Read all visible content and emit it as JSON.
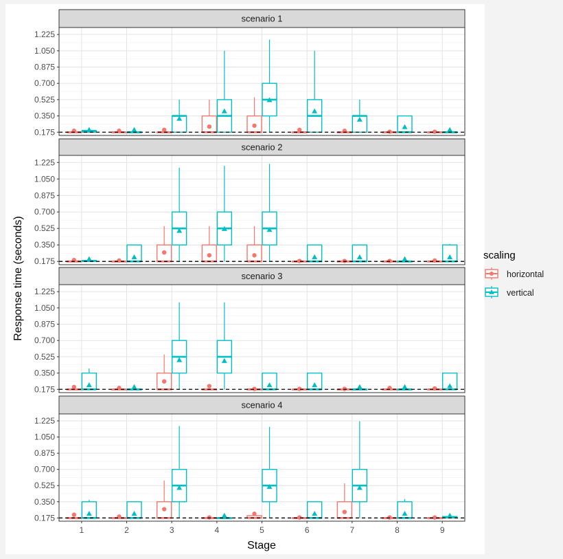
{
  "chart_data": {
    "type": "box",
    "xlabel": "Stage",
    "ylabel": "Response time (seconds)",
    "x_categories": [
      "1",
      "2",
      "3",
      "4",
      "5",
      "6",
      "7",
      "8",
      "9"
    ],
    "y_ticks": [
      0.175,
      0.35,
      0.525,
      0.7,
      0.875,
      1.05,
      1.225
    ],
    "y_tick_labels": [
      "0.175",
      "0.350",
      "0.525",
      "0.700",
      "0.875",
      "1.050",
      "1.225"
    ],
    "ylim": [
      0.14,
      1.3
    ],
    "reference_line": 0.175,
    "legend": {
      "title": "scaling",
      "entries": [
        {
          "label": "horizontal",
          "color": "#F8766D",
          "marker": "circle"
        },
        {
          "label": "vertical",
          "color": "#00BFC4",
          "marker": "triangle"
        }
      ]
    },
    "panels": [
      {
        "title": "scenario 1",
        "series": {
          "horizontal": [
            {
              "stage": 1,
              "lo": 0.175,
              "q1": 0.175,
              "med": 0.175,
              "q3": 0.175,
              "hi": 0.175,
              "mean": 0.19
            },
            {
              "stage": 2,
              "lo": 0.175,
              "q1": 0.175,
              "med": 0.175,
              "q3": 0.175,
              "hi": 0.175,
              "mean": 0.19
            },
            {
              "stage": 3,
              "lo": 0.175,
              "q1": 0.175,
              "med": 0.175,
              "q3": 0.175,
              "hi": 0.175,
              "mean": 0.2
            },
            {
              "stage": 4,
              "lo": 0.175,
              "q1": 0.175,
              "med": 0.175,
              "q3": 0.35,
              "hi": 0.525,
              "mean": 0.235
            },
            {
              "stage": 5,
              "lo": 0.175,
              "q1": 0.175,
              "med": 0.175,
              "q3": 0.35,
              "hi": 0.55,
              "mean": 0.245
            },
            {
              "stage": 6,
              "lo": 0.175,
              "q1": 0.175,
              "med": 0.175,
              "q3": 0.175,
              "hi": 0.175,
              "mean": 0.2
            },
            {
              "stage": 7,
              "lo": 0.175,
              "q1": 0.175,
              "med": 0.175,
              "q3": 0.175,
              "hi": 0.175,
              "mean": 0.19
            },
            {
              "stage": 8,
              "lo": 0.175,
              "q1": 0.175,
              "med": 0.175,
              "q3": 0.175,
              "hi": 0.175,
              "mean": 0.18
            },
            {
              "stage": 9,
              "lo": 0.175,
              "q1": 0.175,
              "med": 0.175,
              "q3": 0.175,
              "hi": 0.175,
              "mean": 0.18
            }
          ],
          "vertical": [
            {
              "stage": 1,
              "lo": 0.175,
              "q1": 0.175,
              "med": 0.19,
              "q3": 0.19,
              "hi": 0.19,
              "mean": 0.2
            },
            {
              "stage": 2,
              "lo": 0.175,
              "q1": 0.175,
              "med": 0.175,
              "q3": 0.175,
              "hi": 0.175,
              "mean": 0.2
            },
            {
              "stage": 3,
              "lo": 0.175,
              "q1": 0.175,
              "med": 0.35,
              "q3": 0.35,
              "hi": 0.525,
              "mean": 0.32
            },
            {
              "stage": 4,
              "lo": 0.175,
              "q1": 0.175,
              "med": 0.35,
              "q3": 0.525,
              "hi": 1.05,
              "mean": 0.4
            },
            {
              "stage": 5,
              "lo": 0.175,
              "q1": 0.35,
              "med": 0.525,
              "q3": 0.7,
              "hi": 1.17,
              "mean": 0.52
            },
            {
              "stage": 6,
              "lo": 0.175,
              "q1": 0.175,
              "med": 0.35,
              "q3": 0.525,
              "hi": 1.05,
              "mean": 0.4
            },
            {
              "stage": 7,
              "lo": 0.175,
              "q1": 0.175,
              "med": 0.35,
              "q3": 0.35,
              "hi": 0.525,
              "mean": 0.31
            },
            {
              "stage": 8,
              "lo": 0.175,
              "q1": 0.175,
              "med": 0.175,
              "q3": 0.35,
              "hi": 0.35,
              "mean": 0.23
            },
            {
              "stage": 9,
              "lo": 0.175,
              "q1": 0.175,
              "med": 0.175,
              "q3": 0.175,
              "hi": 0.175,
              "mean": 0.2
            }
          ]
        }
      },
      {
        "title": "scenario 2",
        "series": {
          "horizontal": [
            {
              "stage": 1,
              "lo": 0.175,
              "q1": 0.175,
              "med": 0.175,
              "q3": 0.175,
              "hi": 0.175,
              "mean": 0.19
            },
            {
              "stage": 2,
              "lo": 0.175,
              "q1": 0.175,
              "med": 0.175,
              "q3": 0.175,
              "hi": 0.175,
              "mean": 0.185
            },
            {
              "stage": 3,
              "lo": 0.175,
              "q1": 0.175,
              "med": 0.175,
              "q3": 0.35,
              "hi": 0.55,
              "mean": 0.27
            },
            {
              "stage": 4,
              "lo": 0.175,
              "q1": 0.175,
              "med": 0.175,
              "q3": 0.35,
              "hi": 0.55,
              "mean": 0.24
            },
            {
              "stage": 5,
              "lo": 0.175,
              "q1": 0.175,
              "med": 0.175,
              "q3": 0.35,
              "hi": 0.55,
              "mean": 0.24
            },
            {
              "stage": 6,
              "lo": 0.175,
              "q1": 0.175,
              "med": 0.175,
              "q3": 0.175,
              "hi": 0.175,
              "mean": 0.18
            },
            {
              "stage": 7,
              "lo": 0.175,
              "q1": 0.175,
              "med": 0.175,
              "q3": 0.175,
              "hi": 0.175,
              "mean": 0.18
            },
            {
              "stage": 8,
              "lo": 0.175,
              "q1": 0.175,
              "med": 0.175,
              "q3": 0.175,
              "hi": 0.175,
              "mean": 0.18
            },
            {
              "stage": 9,
              "lo": 0.175,
              "q1": 0.175,
              "med": 0.175,
              "q3": 0.175,
              "hi": 0.175,
              "mean": 0.185
            }
          ],
          "vertical": [
            {
              "stage": 1,
              "lo": 0.175,
              "q1": 0.175,
              "med": 0.18,
              "q3": 0.185,
              "hi": 0.185,
              "mean": 0.2
            },
            {
              "stage": 2,
              "lo": 0.175,
              "q1": 0.175,
              "med": 0.175,
              "q3": 0.35,
              "hi": 0.35,
              "mean": 0.22
            },
            {
              "stage": 3,
              "lo": 0.175,
              "q1": 0.35,
              "med": 0.525,
              "q3": 0.7,
              "hi": 1.17,
              "mean": 0.5
            },
            {
              "stage": 4,
              "lo": 0.175,
              "q1": 0.35,
              "med": 0.525,
              "q3": 0.7,
              "hi": 1.19,
              "mean": 0.52
            },
            {
              "stage": 5,
              "lo": 0.175,
              "q1": 0.35,
              "med": 0.525,
              "q3": 0.7,
              "hi": 1.21,
              "mean": 0.51
            },
            {
              "stage": 6,
              "lo": 0.175,
              "q1": 0.175,
              "med": 0.175,
              "q3": 0.35,
              "hi": 0.35,
              "mean": 0.22
            },
            {
              "stage": 7,
              "lo": 0.175,
              "q1": 0.175,
              "med": 0.175,
              "q3": 0.35,
              "hi": 0.35,
              "mean": 0.22
            },
            {
              "stage": 8,
              "lo": 0.175,
              "q1": 0.175,
              "med": 0.175,
              "q3": 0.175,
              "hi": 0.175,
              "mean": 0.2
            },
            {
              "stage": 9,
              "lo": 0.175,
              "q1": 0.175,
              "med": 0.175,
              "q3": 0.35,
              "hi": 0.36,
              "mean": 0.22
            }
          ]
        }
      },
      {
        "title": "scenario 3",
        "series": {
          "horizontal": [
            {
              "stage": 1,
              "lo": 0.175,
              "q1": 0.175,
              "med": 0.175,
              "q3": 0.175,
              "hi": 0.175,
              "mean": 0.2
            },
            {
              "stage": 2,
              "lo": 0.175,
              "q1": 0.175,
              "med": 0.175,
              "q3": 0.175,
              "hi": 0.175,
              "mean": 0.19
            },
            {
              "stage": 3,
              "lo": 0.175,
              "q1": 0.175,
              "med": 0.175,
              "q3": 0.35,
              "hi": 0.55,
              "mean": 0.26
            },
            {
              "stage": 4,
              "lo": 0.175,
              "q1": 0.175,
              "med": 0.175,
              "q3": 0.175,
              "hi": 0.175,
              "mean": 0.21
            },
            {
              "stage": 5,
              "lo": 0.175,
              "q1": 0.175,
              "med": 0.175,
              "q3": 0.175,
              "hi": 0.175,
              "mean": 0.18
            },
            {
              "stage": 6,
              "lo": 0.175,
              "q1": 0.175,
              "med": 0.175,
              "q3": 0.175,
              "hi": 0.175,
              "mean": 0.18
            },
            {
              "stage": 7,
              "lo": 0.175,
              "q1": 0.175,
              "med": 0.175,
              "q3": 0.175,
              "hi": 0.175,
              "mean": 0.18
            },
            {
              "stage": 8,
              "lo": 0.175,
              "q1": 0.175,
              "med": 0.175,
              "q3": 0.175,
              "hi": 0.175,
              "mean": 0.19
            },
            {
              "stage": 9,
              "lo": 0.175,
              "q1": 0.175,
              "med": 0.175,
              "q3": 0.175,
              "hi": 0.175,
              "mean": 0.185
            }
          ],
          "vertical": [
            {
              "stage": 1,
              "lo": 0.175,
              "q1": 0.175,
              "med": 0.175,
              "q3": 0.35,
              "hi": 0.4,
              "mean": 0.22
            },
            {
              "stage": 2,
              "lo": 0.175,
              "q1": 0.175,
              "med": 0.175,
              "q3": 0.175,
              "hi": 0.175,
              "mean": 0.2
            },
            {
              "stage": 3,
              "lo": 0.175,
              "q1": 0.35,
              "med": 0.525,
              "q3": 0.7,
              "hi": 1.11,
              "mean": 0.49
            },
            {
              "stage": 4,
              "lo": 0.175,
              "q1": 0.35,
              "med": 0.525,
              "q3": 0.7,
              "hi": 1.11,
              "mean": 0.48
            },
            {
              "stage": 5,
              "lo": 0.175,
              "q1": 0.175,
              "med": 0.175,
              "q3": 0.35,
              "hi": 0.35,
              "mean": 0.22
            },
            {
              "stage": 6,
              "lo": 0.175,
              "q1": 0.175,
              "med": 0.175,
              "q3": 0.35,
              "hi": 0.35,
              "mean": 0.22
            },
            {
              "stage": 7,
              "lo": 0.175,
              "q1": 0.175,
              "med": 0.175,
              "q3": 0.175,
              "hi": 0.175,
              "mean": 0.2
            },
            {
              "stage": 8,
              "lo": 0.175,
              "q1": 0.175,
              "med": 0.175,
              "q3": 0.175,
              "hi": 0.175,
              "mean": 0.2
            },
            {
              "stage": 9,
              "lo": 0.175,
              "q1": 0.175,
              "med": 0.175,
              "q3": 0.35,
              "hi": 0.35,
              "mean": 0.21
            }
          ]
        }
      },
      {
        "title": "scenario 4",
        "series": {
          "horizontal": [
            {
              "stage": 1,
              "lo": 0.175,
              "q1": 0.175,
              "med": 0.175,
              "q3": 0.175,
              "hi": 0.175,
              "mean": 0.21
            },
            {
              "stage": 2,
              "lo": 0.175,
              "q1": 0.175,
              "med": 0.175,
              "q3": 0.175,
              "hi": 0.175,
              "mean": 0.19
            },
            {
              "stage": 3,
              "lo": 0.175,
              "q1": 0.175,
              "med": 0.175,
              "q3": 0.35,
              "hi": 0.58,
              "mean": 0.27
            },
            {
              "stage": 4,
              "lo": 0.175,
              "q1": 0.175,
              "med": 0.175,
              "q3": 0.175,
              "hi": 0.175,
              "mean": 0.18
            },
            {
              "stage": 5,
              "lo": 0.175,
              "q1": 0.175,
              "med": 0.175,
              "q3": 0.2,
              "hi": 0.2,
              "mean": 0.22
            },
            {
              "stage": 6,
              "lo": 0.175,
              "q1": 0.175,
              "med": 0.175,
              "q3": 0.175,
              "hi": 0.175,
              "mean": 0.18
            },
            {
              "stage": 7,
              "lo": 0.175,
              "q1": 0.175,
              "med": 0.175,
              "q3": 0.35,
              "hi": 0.55,
              "mean": 0.24
            },
            {
              "stage": 8,
              "lo": 0.175,
              "q1": 0.175,
              "med": 0.175,
              "q3": 0.175,
              "hi": 0.175,
              "mean": 0.18
            },
            {
              "stage": 9,
              "lo": 0.175,
              "q1": 0.175,
              "med": 0.175,
              "q3": 0.175,
              "hi": 0.175,
              "mean": 0.18
            }
          ],
          "vertical": [
            {
              "stage": 1,
              "lo": 0.175,
              "q1": 0.175,
              "med": 0.175,
              "q3": 0.35,
              "hi": 0.37,
              "mean": 0.22
            },
            {
              "stage": 2,
              "lo": 0.175,
              "q1": 0.175,
              "med": 0.175,
              "q3": 0.35,
              "hi": 0.35,
              "mean": 0.22
            },
            {
              "stage": 3,
              "lo": 0.175,
              "q1": 0.35,
              "med": 0.525,
              "q3": 0.7,
              "hi": 1.17,
              "mean": 0.5
            },
            {
              "stage": 4,
              "lo": 0.175,
              "q1": 0.175,
              "med": 0.175,
              "q3": 0.175,
              "hi": 0.175,
              "mean": 0.2
            },
            {
              "stage": 5,
              "lo": 0.175,
              "q1": 0.35,
              "med": 0.525,
              "q3": 0.7,
              "hi": 1.16,
              "mean": 0.51
            },
            {
              "stage": 6,
              "lo": 0.175,
              "q1": 0.175,
              "med": 0.175,
              "q3": 0.35,
              "hi": 0.35,
              "mean": 0.22
            },
            {
              "stage": 7,
              "lo": 0.175,
              "q1": 0.35,
              "med": 0.525,
              "q3": 0.7,
              "hi": 1.22,
              "mean": 0.5
            },
            {
              "stage": 8,
              "lo": 0.175,
              "q1": 0.175,
              "med": 0.175,
              "q3": 0.35,
              "hi": 0.38,
              "mean": 0.22
            },
            {
              "stage": 9,
              "lo": 0.175,
              "q1": 0.175,
              "med": 0.185,
              "q3": 0.19,
              "hi": 0.19,
              "mean": 0.2
            }
          ]
        }
      }
    ]
  }
}
